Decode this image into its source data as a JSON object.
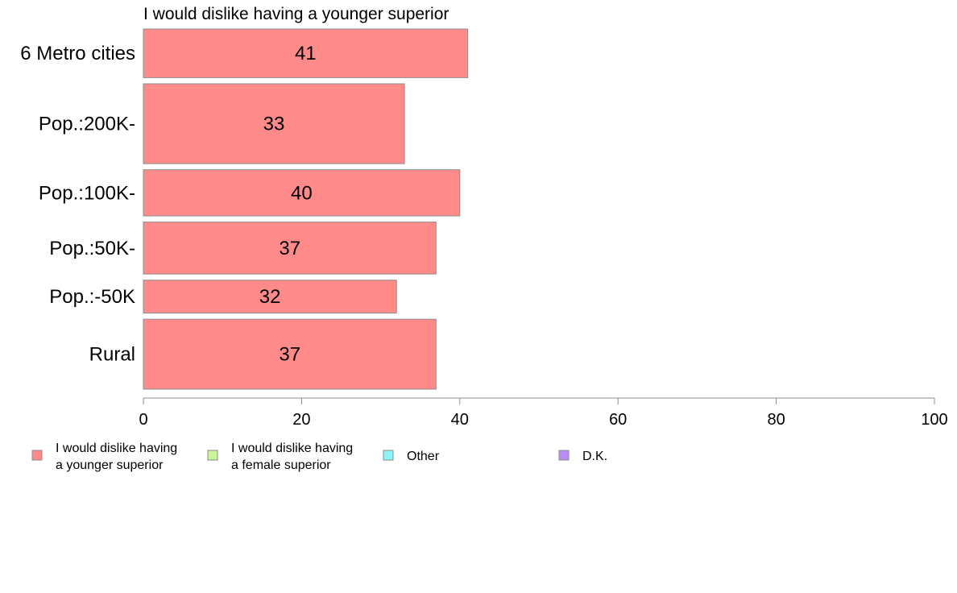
{
  "chart_data": {
    "type": "bar",
    "orientation": "horizontal",
    "title": "I would dislike having a younger superior",
    "categories": [
      "6 Metro cities",
      "Pop.:200K-",
      "Pop.:100K-",
      "Pop.:50K-",
      "Pop.:-50K",
      "Rural"
    ],
    "category_share": [
      0.133,
      0.218,
      0.126,
      0.142,
      0.09,
      0.191
    ],
    "series": [
      {
        "name": "I would dislike having a younger superior",
        "color": "#ff8a8a",
        "values": [
          41,
          33,
          40,
          37,
          32,
          37
        ]
      }
    ],
    "xlim": [
      0,
      100
    ],
    "xticks": [
      0,
      20,
      40,
      60,
      80,
      100
    ],
    "grid": false,
    "legend_position": "bottom-left",
    "legend": [
      {
        "lines": [
          "I would dislike having",
          "a younger superior"
        ],
        "color": "#ff8a8a"
      },
      {
        "lines": [
          "I would dislike having",
          "a female superior"
        ],
        "color": "#c9f59a"
      },
      {
        "lines": [
          "Other"
        ],
        "color": "#8cf5f5"
      },
      {
        "lines": [
          "D.K."
        ],
        "color": "#b98cf5"
      }
    ]
  }
}
